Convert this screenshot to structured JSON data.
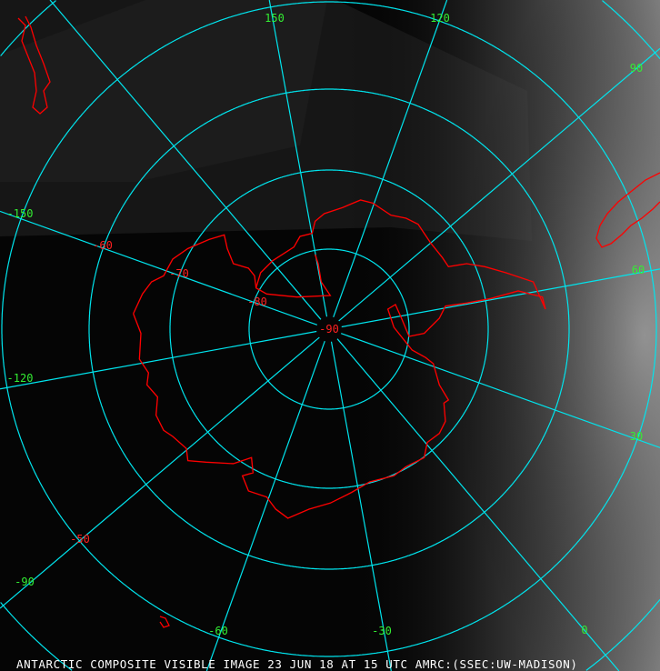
{
  "caption": "ANTARCTIC COMPOSITE VISIBLE IMAGE 23 JUN 18 AT 15 UTC AMRC:(SSEC:UW-MADISON)",
  "colors": {
    "graticule": "#00e5ee",
    "coastline": "#ff0000",
    "longitude_labels": "#33ee33",
    "latitude_labels": "#ff2020",
    "caption": "#ffffff"
  },
  "longitude_labels": [
    "150",
    "120",
    "90",
    "60",
    "30",
    "0",
    "-30",
    "-60",
    "-90",
    "-120",
    "-150"
  ],
  "latitude_labels": [
    "-90",
    "-80",
    "-70",
    "-60",
    "-50"
  ],
  "projection": "south polar stereographic"
}
